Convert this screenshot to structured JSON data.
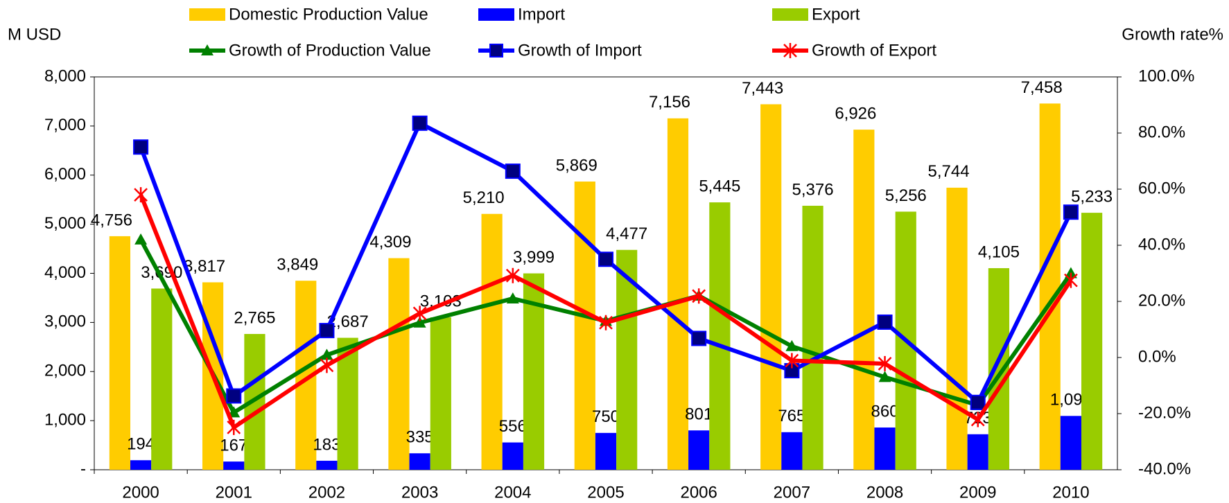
{
  "chart_data": {
    "type": "bar_line",
    "y_label": "M USD",
    "y2_label": "Growth rate%",
    "categories": [
      "2000",
      "2001",
      "2002",
      "2003",
      "2004",
      "2005",
      "2006",
      "2007",
      "2008",
      "2009",
      "2010"
    ],
    "ylim": [
      0,
      8000
    ],
    "yticks": [
      {
        "value": 0,
        "label": "-"
      },
      {
        "value": 1000,
        "label": "1,000"
      },
      {
        "value": 2000,
        "label": "2,000"
      },
      {
        "value": 3000,
        "label": "3,000"
      },
      {
        "value": 4000,
        "label": "4,000"
      },
      {
        "value": 5000,
        "label": "5,000"
      },
      {
        "value": 6000,
        "label": "6,000"
      },
      {
        "value": 7000,
        "label": "7,000"
      },
      {
        "value": 8000,
        "label": "8,000"
      }
    ],
    "y2lim": [
      -40,
      100
    ],
    "y2ticks": [
      {
        "value": -40,
        "label": "-40.0%"
      },
      {
        "value": -20,
        "label": "-20.0%"
      },
      {
        "value": 0,
        "label": "0.0%"
      },
      {
        "value": 20,
        "label": "20.0%"
      },
      {
        "value": 40,
        "label": "40.0%"
      },
      {
        "value": 60,
        "label": "60.0%"
      },
      {
        "value": 80,
        "label": "80.0%"
      },
      {
        "value": 100,
        "label": "100.0%"
      }
    ],
    "series": [
      {
        "name": "Domestic Production Value",
        "type": "bar",
        "color": "#FFCC00",
        "values": [
          4756,
          3817,
          3849,
          4309,
          5210,
          5869,
          7156,
          7443,
          6926,
          5744,
          7458
        ],
        "value_labels": [
          "4,756",
          "3,817",
          "3,849",
          "4,309",
          "5,210",
          "5,869",
          "7,156",
          "7,443",
          "6,926",
          "5,744",
          "7,458"
        ]
      },
      {
        "name": "Import",
        "type": "bar",
        "color": "#0000FF",
        "values": [
          194,
          167,
          183,
          335,
          556,
          750,
          801,
          765,
          860,
          723,
          1096
        ],
        "value_labels": [
          "194",
          "167",
          "183",
          "335",
          "556",
          "750",
          "801",
          "765",
          "860",
          "723",
          "1,096"
        ]
      },
      {
        "name": "Export",
        "type": "bar",
        "color": "#99CC00",
        "values": [
          3690,
          2765,
          2687,
          3103,
          3999,
          4477,
          5445,
          5376,
          5256,
          4105,
          5233
        ],
        "value_labels": [
          "3,690",
          "2,765",
          "2,687",
          "3,103",
          "3,999",
          "4,477",
          "5,445",
          "5,376",
          "5,256",
          "4,105",
          "5,233"
        ]
      },
      {
        "name": "Growth of Production Value",
        "type": "line",
        "axis": "y2",
        "color": "#008000",
        "marker": "triangle",
        "values": [
          42,
          -19.6,
          0.9,
          12.4,
          21,
          13,
          22,
          4,
          -7,
          -17,
          30
        ]
      },
      {
        "name": "Growth of Import",
        "type": "line",
        "axis": "y2",
        "color": "#0000FF",
        "marker": "square",
        "values": [
          75,
          -13.7,
          9.6,
          83.5,
          66.4,
          35,
          6.8,
          -4.7,
          12.6,
          -16,
          51.8
        ]
      },
      {
        "name": "Growth of Export",
        "type": "line",
        "axis": "y2",
        "color": "#FF0000",
        "marker": "star",
        "values": [
          58,
          -24.9,
          -2.8,
          15.7,
          29.2,
          12.4,
          21.9,
          -1.1,
          -2.2,
          -22.1,
          27.5
        ]
      }
    ]
  }
}
